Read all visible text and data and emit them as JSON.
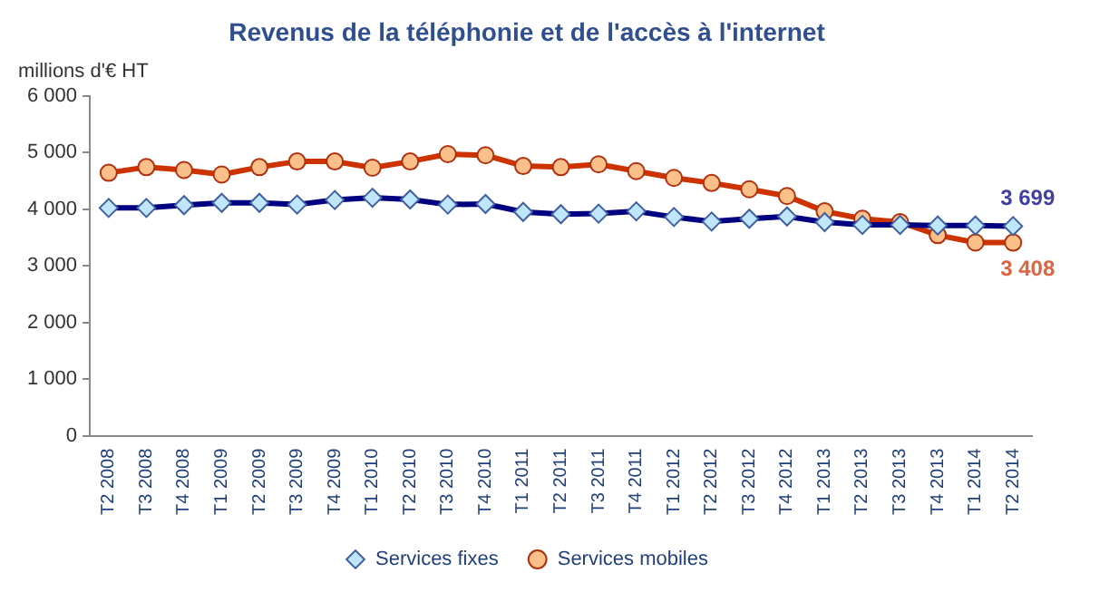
{
  "chart_data": {
    "type": "line",
    "title": "Revenus de la téléphonie et de l'accès à l'internet",
    "ylabel": "millions d'€ HT",
    "categories": [
      "T2 2008",
      "T3 2008",
      "T4 2008",
      "T1 2009",
      "T2 2009",
      "T3 2009",
      "T4 2009",
      "T1 2010",
      "T2 2010",
      "T3 2010",
      "T4 2010",
      "T1 2011",
      "T2 2011",
      "T3 2011",
      "T4 2011",
      "T1 2012",
      "T2 2012",
      "T3 2012",
      "T4 2012",
      "T1 2013",
      "T2 2013",
      "T3 2013",
      "T4 2013",
      "T1 2014",
      "T2 2014"
    ],
    "series": [
      {
        "name": "Services mobiles",
        "color": "#cc3300",
        "marker": "circle",
        "values": [
          4640,
          4740,
          4690,
          4610,
          4740,
          4840,
          4840,
          4730,
          4840,
          4970,
          4950,
          4760,
          4740,
          4790,
          4670,
          4550,
          4460,
          4350,
          4230,
          3960,
          3830,
          3770,
          3540,
          3410,
          3408
        ],
        "value_labels": [
          null,
          null,
          null,
          null,
          null,
          null,
          null,
          null,
          null,
          null,
          null,
          null,
          null,
          null,
          null,
          null,
          null,
          null,
          null,
          null,
          null,
          null,
          null,
          null,
          "3 408"
        ]
      },
      {
        "name": "Services fixes",
        "color": "#000080",
        "marker": "diamond",
        "values": [
          4020,
          4020,
          4070,
          4110,
          4110,
          4080,
          4160,
          4200,
          4170,
          4080,
          4090,
          3950,
          3910,
          3920,
          3960,
          3860,
          3780,
          3830,
          3870,
          3770,
          3720,
          3720,
          3710,
          3710,
          3699
        ],
        "value_labels": [
          null,
          null,
          null,
          null,
          null,
          null,
          null,
          null,
          null,
          null,
          null,
          null,
          null,
          null,
          null,
          null,
          null,
          null,
          null,
          null,
          null,
          null,
          null,
          null,
          "3 699"
        ]
      }
    ],
    "ylim": [
      0,
      6000
    ],
    "yticks": [
      {
        "value": 0,
        "label": "0"
      },
      {
        "value": 1000,
        "label": "1 000"
      },
      {
        "value": 2000,
        "label": "2 000"
      },
      {
        "value": 3000,
        "label": "3 000"
      },
      {
        "value": 4000,
        "label": "4 000"
      },
      {
        "value": 5000,
        "label": "5 000"
      },
      {
        "value": 6000,
        "label": "6 000"
      }
    ],
    "grid": false,
    "legend": "bottom"
  }
}
